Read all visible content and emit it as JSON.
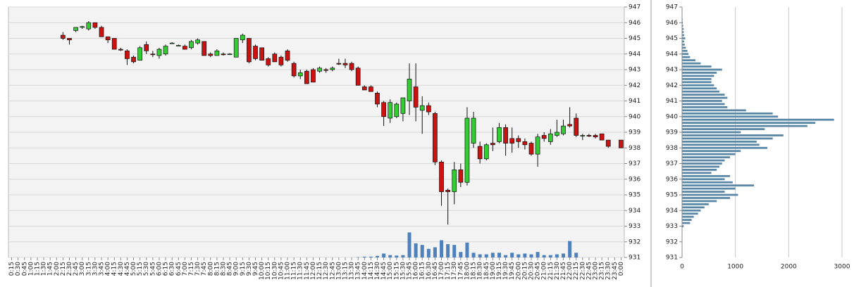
{
  "chart_data": [
    {
      "type": "candlestick",
      "categories": [
        "0:15",
        "0:30",
        "0:45",
        "1:00",
        "1:15",
        "1:30",
        "1:45",
        "2:00",
        "2:15",
        "2:30",
        "2:45",
        "3:00",
        "3:15",
        "3:30",
        "3:45",
        "4:00",
        "4:15",
        "4:30",
        "4:45",
        "5:00",
        "5:15",
        "5:30",
        "5:45",
        "6:00",
        "6:15",
        "6:30",
        "6:45",
        "7:00",
        "7:15",
        "7:30",
        "7:45",
        "8:00",
        "8:15",
        "8:30",
        "8:45",
        "9:00",
        "9:15",
        "9:30",
        "9:45",
        "10:00",
        "10:15",
        "10:30",
        "10:45",
        "11:00",
        "11:15",
        "11:30",
        "11:45",
        "12:00",
        "12:15",
        "12:30",
        "12:45",
        "13:00",
        "13:15",
        "13:30",
        "13:45",
        "14:00",
        "14:15",
        "14:30",
        "14:45",
        "15:00",
        "15:15",
        "15:30",
        "15:45",
        "16:00",
        "16:15",
        "16:30",
        "16:45",
        "17:00",
        "17:15",
        "17:30",
        "17:45",
        "18:00",
        "18:15",
        "18:30",
        "18:45",
        "19:00",
        "19:15",
        "19:30",
        "19:45",
        "20:00",
        "20:15",
        "20:30",
        "20:45",
        "21:00",
        "21:15",
        "21:30",
        "21:45",
        "22:00",
        "22:15",
        "22:30",
        "22:45",
        "23:00",
        "23:15",
        "23:30",
        "23:45",
        "0:00"
      ],
      "open": [
        null,
        null,
        null,
        null,
        null,
        null,
        null,
        null,
        945.2,
        945.0,
        945.5,
        945.7,
        945.6,
        946.0,
        945.7,
        945.1,
        945.0,
        944.3,
        944.2,
        943.8,
        943.6,
        944.6,
        944.0,
        943.9,
        944.0,
        944.7,
        944.55,
        944.5,
        944.4,
        944.7,
        944.8,
        944.0,
        943.9,
        944.0,
        944.0,
        943.8,
        944.9,
        945.0,
        944.5,
        944.4,
        943.7,
        944.0,
        943.8,
        944.2,
        943.4,
        942.6,
        942.9,
        943.0,
        942.9,
        943.0,
        943.0,
        943.4,
        943.4,
        943.4,
        943.1,
        941.9,
        941.9,
        941.5,
        940.9,
        939.9,
        940.0,
        940.2,
        941.0,
        941.9,
        940.4,
        940.7,
        940.2,
        937.1,
        935.3,
        935.2,
        936.6,
        935.8,
        938.3,
        938.1,
        937.3,
        938.3,
        938.4,
        939.3,
        938.6,
        938.6,
        938.4,
        938.3,
        937.6,
        938.8,
        938.4,
        938.8,
        938.9,
        939.5,
        939.9,
        938.8,
        938.8,
        938.8,
        938.9,
        938.5,
        null,
        938.5
      ],
      "high": [
        null,
        null,
        null,
        null,
        null,
        null,
        null,
        null,
        945.4,
        945.0,
        945.7,
        945.8,
        946.1,
        946.0,
        945.8,
        945.1,
        945.0,
        944.4,
        944.3,
        943.9,
        944.5,
        944.8,
        944.2,
        944.4,
        944.6,
        944.75,
        944.6,
        944.6,
        944.9,
        945.0,
        944.8,
        944.1,
        944.3,
        944.1,
        944.05,
        945.0,
        945.3,
        945.0,
        944.6,
        944.4,
        943.8,
        944.1,
        943.9,
        944.3,
        943.5,
        943.0,
        943.0,
        943.1,
        943.2,
        943.1,
        943.2,
        943.7,
        943.7,
        943.5,
        943.2,
        942.0,
        942.0,
        941.6,
        941.0,
        941.1,
        940.9,
        941.2,
        943.4,
        943.4,
        941.3,
        940.9,
        940.3,
        937.2,
        935.4,
        937.1,
        937.0,
        940.6,
        940.3,
        938.4,
        938.3,
        939.3,
        939.6,
        939.5,
        939.3,
        938.8,
        938.6,
        938.4,
        938.9,
        939.0,
        939.2,
        939.8,
        939.8,
        940.6,
        940.2,
        938.9,
        938.9,
        938.9,
        938.9,
        938.5,
        null,
        938.5
      ],
      "low": [
        null,
        null,
        null,
        null,
        null,
        null,
        null,
        null,
        944.9,
        944.6,
        945.4,
        945.6,
        945.5,
        945.6,
        945.1,
        944.7,
        944.3,
        944.2,
        943.3,
        943.4,
        943.6,
        944.0,
        943.8,
        943.7,
        943.9,
        944.65,
        944.5,
        944.3,
        944.3,
        944.6,
        943.9,
        943.8,
        943.9,
        943.9,
        943.95,
        943.8,
        944.7,
        943.4,
        943.6,
        943.6,
        943.2,
        943.5,
        943.2,
        943.5,
        942.5,
        942.4,
        942.1,
        942.2,
        942.8,
        942.8,
        942.9,
        943.3,
        943.1,
        942.9,
        942.0,
        941.7,
        941.6,
        940.6,
        939.4,
        939.6,
        939.9,
        939.7,
        940.1,
        939.7,
        938.9,
        940.1,
        936.9,
        934.3,
        933.1,
        934.4,
        935.5,
        935.6,
        938.0,
        937.0,
        937.2,
        937.8,
        938.3,
        937.5,
        937.7,
        938.0,
        937.9,
        937.5,
        936.8,
        938.4,
        938.2,
        938.7,
        938.8,
        939.3,
        938.7,
        938.5,
        938.7,
        938.6,
        938.5,
        938.0,
        null,
        938.0
      ],
      "close": [
        null,
        null,
        null,
        null,
        null,
        null,
        null,
        null,
        945.0,
        944.9,
        945.7,
        945.75,
        946.0,
        945.7,
        945.1,
        944.9,
        944.3,
        944.25,
        943.7,
        943.5,
        944.4,
        944.2,
        943.95,
        944.3,
        944.5,
        944.7,
        944.55,
        944.3,
        944.8,
        944.9,
        943.9,
        943.9,
        944.2,
        943.95,
        944.0,
        945.0,
        945.2,
        943.5,
        943.7,
        943.6,
        943.3,
        943.5,
        943.3,
        943.6,
        942.6,
        942.8,
        942.1,
        942.2,
        943.1,
        942.95,
        943.1,
        943.35,
        943.3,
        943.0,
        942.0,
        941.7,
        941.6,
        940.8,
        940.0,
        940.9,
        940.8,
        941.2,
        942.4,
        940.6,
        940.7,
        940.3,
        937.1,
        935.2,
        935.2,
        936.6,
        935.8,
        939.9,
        939.9,
        937.3,
        938.2,
        938.2,
        939.3,
        938.3,
        938.3,
        938.4,
        938.2,
        937.6,
        938.7,
        938.6,
        938.9,
        939.0,
        939.4,
        939.4,
        938.8,
        938.8,
        938.75,
        938.7,
        938.5,
        938.1,
        null,
        938.0
      ],
      "volume": [
        0,
        0,
        0,
        0,
        0,
        0,
        0,
        0,
        0,
        0,
        0,
        0,
        0,
        0,
        0,
        0,
        0,
        0,
        0,
        0,
        0,
        0,
        0,
        0,
        0,
        0,
        0,
        0,
        0,
        0,
        0,
        0,
        0,
        0,
        0,
        0,
        0,
        0,
        0,
        0,
        0,
        0,
        0,
        0,
        0,
        0,
        0,
        0,
        0,
        0,
        0,
        0,
        0,
        0,
        0.02,
        0.05,
        0.05,
        0.1,
        0.25,
        0.15,
        0.12,
        0.15,
        1.6,
        0.9,
        0.8,
        0.55,
        0.65,
        1.1,
        0.85,
        0.8,
        0.35,
        0.95,
        0.3,
        0.2,
        0.2,
        0.3,
        0.3,
        0.15,
        0.3,
        0.2,
        0.25,
        0.2,
        0.35,
        0.15,
        0.15,
        0.2,
        0.25,
        1.05,
        0.3,
        0,
        0,
        0,
        0,
        0,
        0,
        0
      ],
      "up_color": "#33cc33",
      "down_color": "#cc1111",
      "volume_color": "#4f81bd",
      "ylim": [
        931,
        947
      ],
      "yticks": [
        931,
        932,
        933,
        934,
        935,
        936,
        937,
        938,
        939,
        940,
        941,
        942,
        943,
        944,
        945,
        946,
        947
      ],
      "grid": true
    },
    {
      "type": "barh",
      "levels": [
        933.0,
        933.2,
        933.4,
        933.6,
        933.8,
        934.0,
        934.2,
        934.4,
        934.6,
        934.8,
        935.0,
        935.2,
        935.4,
        935.6,
        935.8,
        936.0,
        936.2,
        936.4,
        936.6,
        936.8,
        937.0,
        937.2,
        937.4,
        937.6,
        937.8,
        938.0,
        938.2,
        938.4,
        938.6,
        938.8,
        939.0,
        939.2,
        939.4,
        939.6,
        939.8,
        940.0,
        940.2,
        940.4,
        940.6,
        940.8,
        941.0,
        941.2,
        941.4,
        941.6,
        941.8,
        942.0,
        942.2,
        942.4,
        942.6,
        942.8,
        943.0,
        943.2,
        943.4,
        943.6,
        943.8,
        944.0,
        944.2,
        944.4,
        944.6,
        944.8,
        945.0,
        945.2,
        945.4,
        945.6,
        945.8,
        946.0,
        946.2
      ],
      "values": [
        30,
        150,
        180,
        220,
        300,
        350,
        420,
        500,
        650,
        900,
        1050,
        800,
        1000,
        1350,
        950,
        800,
        900,
        550,
        650,
        700,
        750,
        800,
        900,
        1000,
        1100,
        1600,
        1450,
        1400,
        1700,
        1900,
        1100,
        1550,
        2350,
        2500,
        2850,
        1800,
        1700,
        1200,
        850,
        800,
        750,
        850,
        800,
        700,
        650,
        600,
        550,
        550,
        600,
        650,
        750,
        550,
        350,
        250,
        150,
        120,
        100,
        70,
        50,
        40,
        60,
        40,
        30,
        30,
        20,
        15,
        10
      ],
      "color": "#5b87a6",
      "xlim": [
        0,
        3000
      ],
      "xticks": [
        0,
        1000,
        2000,
        3000
      ],
      "ylim": [
        931,
        947
      ],
      "yticks": [
        931,
        932,
        933,
        934,
        935,
        936,
        937,
        938,
        939,
        940,
        941,
        942,
        943,
        944,
        945,
        946,
        947
      ],
      "grid": true
    }
  ]
}
